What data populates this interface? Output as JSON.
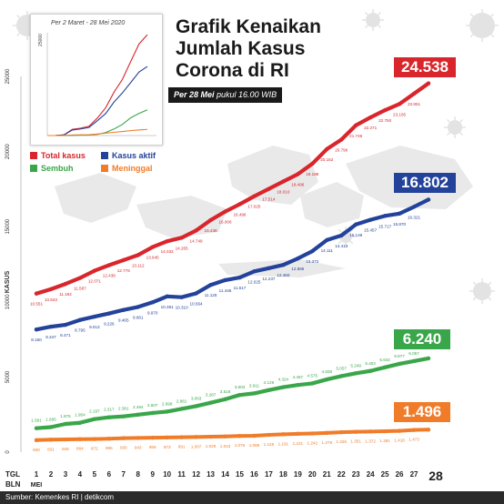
{
  "header": {
    "title_line1": "Grafik Kenaikan",
    "title_line2": "Jumlah Kasus",
    "title_line3": "Corona di RI",
    "subtitle_bold": "Per 28 Mei",
    "subtitle_rest": " pukul 16.00 WIB"
  },
  "inset": {
    "label": "Per 2 Maret - 28 Mei 2020",
    "ymax_label": "25000"
  },
  "legend": {
    "total": "Total kasus",
    "aktif": "Kasus aktif",
    "sembuh": "Sembuh",
    "meninggal": "Meninggal"
  },
  "callouts": {
    "total": "24.538",
    "aktif": "16.802",
    "sembuh": "6.240",
    "meninggal": "1.496"
  },
  "footer": {
    "tgl_label": "TGL",
    "bln_label": "BLN",
    "month_label": "MEI",
    "source": "Sumber: Kemenkes RI | detikcom"
  },
  "colors": {
    "total": "#d9262c",
    "aktif": "#23429a",
    "sembuh": "#3aa64a",
    "meninggal": "#f07c2a",
    "background_map": "#e9e9e9"
  },
  "chart_data": {
    "type": "line",
    "ylabel": "KASUS",
    "ylim": [
      0,
      25000
    ],
    "yticks": [
      "0",
      "5000",
      "10000",
      "15000",
      "20000",
      "25000"
    ],
    "x": [
      1,
      2,
      3,
      4,
      5,
      6,
      7,
      8,
      9,
      10,
      11,
      12,
      13,
      14,
      15,
      16,
      17,
      18,
      19,
      20,
      21,
      22,
      23,
      24,
      25,
      26,
      27,
      28
    ],
    "xtick_labels": [
      "1",
      "2",
      "3",
      "4",
      "5",
      "6",
      "7",
      "8",
      "9",
      "10",
      "11",
      "12",
      "13",
      "14",
      "15",
      "16",
      "17",
      "18",
      "19",
      "20",
      "21",
      "22",
      "23",
      "24",
      "25",
      "26",
      "27",
      "28"
    ],
    "grid": false,
    "series": [
      {
        "name": "Total kasus",
        "color": "#d9262c",
        "values": [
          10551,
          10843,
          11192,
          11587,
          12071,
          12438,
          12776,
          13112,
          13645,
          14032,
          14265,
          14749,
          15438,
          16006,
          16496,
          17025,
          17514,
          18010,
          18496,
          19189,
          20162,
          20796,
          21745,
          22271,
          22750,
          23165,
          23851,
          24538
        ],
        "labels": [
          "10.551",
          "10.843",
          "11.192",
          "11.587",
          "12.071",
          "12.438",
          "12.776",
          "13.112",
          "13.645",
          "14.032",
          "14.265",
          "14.749",
          "15.438",
          "16.006",
          "16.496",
          "17.025",
          "17.514",
          "18.010",
          "18.496",
          "19.189",
          "20.162",
          "20.796",
          "21.745",
          "22.271",
          "22.750",
          "23.165",
          "23.851",
          "24.538"
        ]
      },
      {
        "name": "Kasus aktif",
        "color": "#23429a",
        "values": [
          8160,
          8347,
          8471,
          8795,
          9013,
          9226,
          9465,
          9661,
          9970,
          10361,
          10310,
          10564,
          11125,
          11446,
          11617,
          12025,
          12237,
          12460,
          12885,
          13372,
          14111,
          14413,
          15148,
          15457,
          15717,
          15870,
          16321,
          16802
        ],
        "labels": [
          "8.160",
          "8.347",
          "8.471",
          "8.795",
          "9.013",
          "9.226",
          "9.465",
          "9.661",
          "9.970",
          "10.361",
          "10.310",
          "10.564",
          "11.125",
          "11.446",
          "11.617",
          "12.025",
          "12.237",
          "12.460",
          "12.885",
          "13.372",
          "14.111",
          "14.413",
          "15.148",
          "15.457",
          "15.717",
          "15.870",
          "16.321",
          "16.802"
        ]
      },
      {
        "name": "Sembuh",
        "color": "#3aa64a",
        "values": [
          1591,
          1665,
          1876,
          1954,
          2197,
          2317,
          2381,
          2494,
          2607,
          2698,
          2881,
          3063,
          3287,
          3518,
          3803,
          3911,
          4129,
          4324,
          4467,
          4575,
          4838,
          5057,
          5249,
          5402,
          5642,
          5877,
          6057,
          6240
        ],
        "labels": [
          "1.591",
          "1.665",
          "1.876",
          "1.954",
          "2.197",
          "2.317",
          "2.381",
          "2.494",
          "2.607",
          "2.698",
          "2.881",
          "3.063",
          "3.287",
          "3.518",
          "3.803",
          "3.911",
          "4.129",
          "4.324",
          "4.467",
          "4.575",
          "4.838",
          "5.057",
          "5.249",
          "5.402",
          "5.642",
          "5.877",
          "6.057",
          "6.240"
        ]
      },
      {
        "name": "Meninggal",
        "color": "#f07c2a",
        "values": [
          800,
          831,
          845,
          864,
          872,
          895,
          930,
          943,
          959,
          973,
          991,
          1007,
          1028,
          1043,
          1076,
          1089,
          1148,
          1191,
          1221,
          1242,
          1278,
          1326,
          1351,
          1372,
          1391,
          1418,
          1473,
          1496
        ],
        "labels": [
          "800",
          "831",
          "845",
          "864",
          "872",
          "895",
          "930",
          "943",
          "959",
          "973",
          "991",
          "1.007",
          "1.028",
          "1.043",
          "1.076",
          "1.089",
          "1.148",
          "1.191",
          "1.221",
          "1.242",
          "1.278",
          "1.326",
          "1.351",
          "1.372",
          "1.391",
          "1.418",
          "1.473",
          "1.496"
        ]
      }
    ],
    "inset": {
      "type": "line",
      "ylim": [
        0,
        25000
      ],
      "series": [
        {
          "name": "Total kasus",
          "color": "#d9262c",
          "values": [
            2,
            27,
            172,
            1528,
            1790,
            2273,
            4241,
            6760,
            10551,
            13645,
            18010,
            22271,
            24538
          ]
        },
        {
          "name": "Kasus aktif",
          "color": "#23429a",
          "values": [
            2,
            25,
            155,
            1348,
            1607,
            1968,
            3616,
            5343,
            8160,
            10361,
            12885,
            15457,
            16802
          ]
        },
        {
          "name": "Sembuh",
          "color": "#3aa64a",
          "values": [
            0,
            2,
            9,
            44,
            81,
            135,
            276,
            747,
            1591,
            2698,
            4324,
            5402,
            6240
          ]
        },
        {
          "name": "Meninggal",
          "color": "#f07c2a",
          "values": [
            0,
            0,
            8,
            136,
            170,
            198,
            373,
            590,
            800,
            973,
            1191,
            1372,
            1496
          ]
        }
      ]
    }
  }
}
